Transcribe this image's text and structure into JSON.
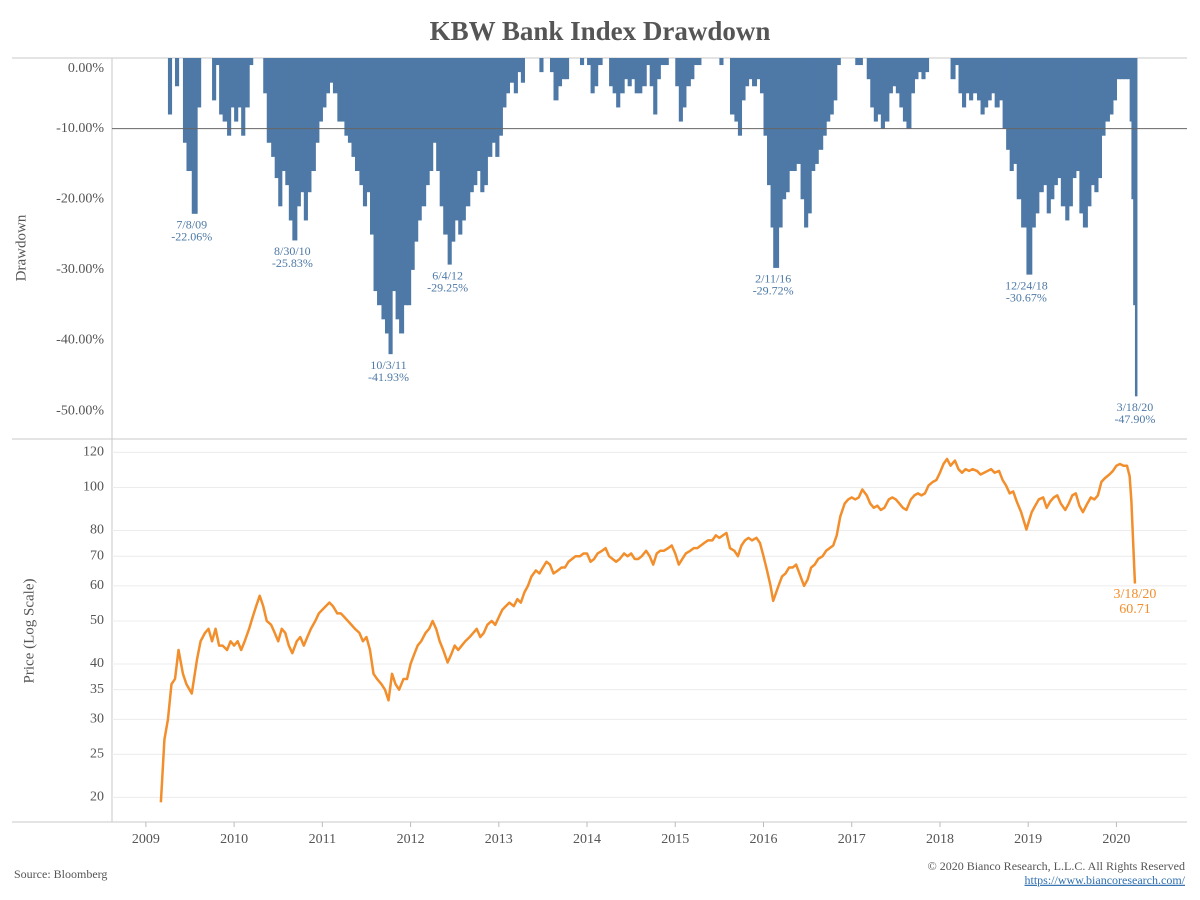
{
  "title": "KBW Bank Index Drawdown",
  "source": "Source: Bloomberg",
  "copyright": "© 2020 Bianco Research, L.L.C. All Rights Reserved",
  "url": "https://www.biancoresearch.com/",
  "chart_data": [
    {
      "type": "bar",
      "ylabel": "Drawdown",
      "color": "#4e79a7",
      "x": [
        2009.17,
        2009.21,
        2009.25,
        2009.29,
        2009.33,
        2009.37,
        2009.42,
        2009.46,
        2009.52,
        2009.58,
        2009.62,
        2009.67,
        2009.71,
        2009.75,
        2009.79,
        2009.83,
        2009.87,
        2009.92,
        2009.96,
        2010.0,
        2010.04,
        2010.08,
        2010.12,
        2010.17,
        2010.21,
        2010.25,
        2010.29,
        2010.33,
        2010.37,
        2010.42,
        2010.46,
        2010.5,
        2010.54,
        2010.58,
        2010.62,
        2010.66,
        2010.71,
        2010.75,
        2010.79,
        2010.83,
        2010.87,
        2010.92,
        2010.96,
        2011.0,
        2011.04,
        2011.08,
        2011.12,
        2011.17,
        2011.21,
        2011.25,
        2011.29,
        2011.33,
        2011.37,
        2011.42,
        2011.46,
        2011.5,
        2011.54,
        2011.58,
        2011.62,
        2011.67,
        2011.71,
        2011.75,
        2011.79,
        2011.83,
        2011.87,
        2011.92,
        2011.96,
        2012.0,
        2012.04,
        2012.08,
        2012.12,
        2012.17,
        2012.21,
        2012.25,
        2012.29,
        2012.33,
        2012.37,
        2012.42,
        2012.46,
        2012.5,
        2012.54,
        2012.58,
        2012.62,
        2012.67,
        2012.71,
        2012.75,
        2012.79,
        2012.83,
        2012.87,
        2012.92,
        2012.96,
        2013.0,
        2013.04,
        2013.08,
        2013.12,
        2013.17,
        2013.21,
        2013.25,
        2013.29,
        2013.33,
        2013.37,
        2013.42,
        2013.46,
        2013.5,
        2013.54,
        2013.58,
        2013.62,
        2013.67,
        2013.71,
        2013.75,
        2013.79,
        2013.83,
        2013.87,
        2013.92,
        2013.96,
        2014.0,
        2014.04,
        2014.08,
        2014.12,
        2014.17,
        2014.21,
        2014.25,
        2014.29,
        2014.33,
        2014.37,
        2014.42,
        2014.46,
        2014.5,
        2014.54,
        2014.58,
        2014.62,
        2014.67,
        2014.71,
        2014.75,
        2014.79,
        2014.83,
        2014.87,
        2014.92,
        2014.96,
        2015.0,
        2015.04,
        2015.08,
        2015.12,
        2015.17,
        2015.21,
        2015.25,
        2015.29,
        2015.33,
        2015.37,
        2015.42,
        2015.46,
        2015.5,
        2015.54,
        2015.58,
        2015.62,
        2015.67,
        2015.71,
        2015.75,
        2015.79,
        2015.83,
        2015.87,
        2015.92,
        2015.96,
        2016.0,
        2016.04,
        2016.08,
        2016.11,
        2016.17,
        2016.21,
        2016.25,
        2016.29,
        2016.33,
        2016.37,
        2016.42,
        2016.46,
        2016.5,
        2016.54,
        2016.58,
        2016.62,
        2016.67,
        2016.71,
        2016.75,
        2016.79,
        2016.83,
        2016.87,
        2016.92,
        2016.96,
        2017.0,
        2017.04,
        2017.08,
        2017.12,
        2017.17,
        2017.21,
        2017.25,
        2017.29,
        2017.33,
        2017.37,
        2017.42,
        2017.46,
        2017.5,
        2017.54,
        2017.58,
        2017.62,
        2017.67,
        2017.71,
        2017.75,
        2017.79,
        2017.83,
        2017.87,
        2017.92,
        2017.96,
        2018.0,
        2018.04,
        2018.08,
        2018.12,
        2018.17,
        2018.21,
        2018.25,
        2018.29,
        2018.33,
        2018.37,
        2018.42,
        2018.46,
        2018.5,
        2018.54,
        2018.58,
        2018.62,
        2018.67,
        2018.71,
        2018.75,
        2018.79,
        2018.83,
        2018.87,
        2018.92,
        2018.98,
        2019.04,
        2019.08,
        2019.12,
        2019.17,
        2019.21,
        2019.25,
        2019.29,
        2019.33,
        2019.37,
        2019.42,
        2019.46,
        2019.5,
        2019.54,
        2019.58,
        2019.62,
        2019.67,
        2019.71,
        2019.75,
        2019.79,
        2019.83,
        2019.87,
        2019.92,
        2019.96,
        2020.0,
        2020.04,
        2020.08,
        2020.12,
        2020.15,
        2020.17,
        2020.19,
        2020.21
      ],
      "values": [
        0,
        0,
        -8,
        0,
        -4,
        0,
        -12,
        -16,
        -22.06,
        -7,
        0,
        0,
        0,
        -6,
        -1,
        -8,
        -9,
        -11,
        -7,
        -9,
        -7,
        -11,
        -7,
        -1,
        0,
        0,
        0,
        -5,
        -12,
        -14,
        -17,
        -21,
        -16,
        -18,
        -23,
        -25.83,
        -21,
        -19,
        -23,
        -19,
        -16,
        -12,
        -9,
        -7,
        -5,
        -3.5,
        -5,
        -9,
        -9,
        -11,
        -12,
        -14,
        -16,
        -18,
        -21,
        -19,
        -25,
        -33,
        -35,
        -37,
        -39,
        -41.93,
        -33,
        -37,
        -39,
        -35,
        -35,
        -30,
        -26,
        -23,
        -21,
        -18,
        -16,
        -12,
        -16,
        -21,
        -25,
        -29.25,
        -26,
        -23,
        -25,
        -23,
        -21,
        -19,
        -18,
        -16,
        -19,
        -18,
        -14,
        -12,
        -14,
        -11,
        -7,
        -5,
        -3.5,
        -5,
        -2,
        -3.5,
        0,
        0,
        0,
        0,
        -2,
        0,
        0,
        -2,
        -6,
        -4,
        -3,
        -3,
        0,
        0,
        0,
        -1,
        0,
        -1,
        -5,
        -4,
        -1,
        0,
        0,
        -4,
        -5,
        -7,
        -5,
        -3,
        -4,
        -3,
        -5,
        -5,
        -4,
        -1,
        -4,
        -8,
        -3,
        -1,
        -1,
        0,
        0,
        -4,
        -9,
        -7,
        -4,
        -3,
        -1,
        -1,
        0,
        0,
        0,
        0,
        0,
        -1,
        0,
        0,
        -8,
        -9,
        -11,
        -6,
        -4,
        -3,
        -4,
        -3,
        -5,
        -11,
        -18,
        -24,
        -29.72,
        -24,
        -20,
        -19,
        -16,
        -16,
        -15,
        -20,
        -24,
        -22,
        -16,
        -15,
        -13,
        -11,
        -9,
        -8,
        -6,
        -1,
        0,
        0,
        0,
        0,
        -1,
        -1,
        0,
        -3,
        -7,
        -9,
        -8,
        -10,
        -9,
        -5,
        -4,
        -5,
        -7,
        -9,
        -10,
        -5,
        -3,
        -2,
        -3,
        -2,
        0,
        0,
        0,
        0,
        0,
        0,
        -3,
        -1,
        -5,
        -7,
        -5,
        -6,
        -5,
        -6,
        -8,
        -7,
        -6,
        -5,
        -7,
        -6,
        -10,
        -13,
        -16,
        -15,
        -20,
        -24,
        -30.67,
        -24,
        -22,
        -19,
        -18,
        -22,
        -20,
        -18,
        -17,
        -21,
        -23,
        -21,
        -17,
        -16,
        -22,
        -24,
        -21,
        -18,
        -19,
        -17,
        -11,
        -9,
        -8,
        -6,
        -3,
        -3,
        -3,
        -3,
        -9,
        -20,
        -35,
        -47.9
      ],
      "xlim": [
        2008.616,
        2020.8
      ],
      "ylim": [
        -53.8,
        0
      ],
      "yticks": [
        {
          "value": 0,
          "label": "0.00%"
        },
        {
          "value": -10,
          "label": "-10.00%"
        },
        {
          "value": -20,
          "label": "-20.00%"
        },
        {
          "value": -30,
          "label": "-30.00%"
        },
        {
          "value": -40,
          "label": "-40.00%"
        },
        {
          "value": -50,
          "label": "-50.00%"
        }
      ],
      "reference_lines": [
        -10
      ],
      "annotations": [
        {
          "x": 2009.52,
          "label": "7/8/09",
          "value": -22.06,
          "value_label": "-22.06%"
        },
        {
          "x": 2010.66,
          "label": "8/30/10",
          "value": -25.83,
          "value_label": "-25.83%"
        },
        {
          "x": 2011.75,
          "label": "10/3/11",
          "value": -41.93,
          "value_label": "-41.93%"
        },
        {
          "x": 2012.42,
          "label": "6/4/12",
          "value": -29.25,
          "value_label": "-29.25%"
        },
        {
          "x": 2016.11,
          "label": "2/11/16",
          "value": -29.72,
          "value_label": "-29.72%"
        },
        {
          "x": 2018.98,
          "label": "12/24/18",
          "value": -30.67,
          "value_label": "-30.67%"
        },
        {
          "x": 2020.21,
          "label": "3/18/20",
          "value": -47.9,
          "value_label": "-47.90%"
        }
      ]
    },
    {
      "type": "line",
      "ylabel": "Price (Log Scale)",
      "color": "#f28e2b",
      "log_scale": true,
      "grid": true,
      "x": [
        2009.17,
        2009.21,
        2009.25,
        2009.29,
        2009.33,
        2009.37,
        2009.42,
        2009.46,
        2009.52,
        2009.58,
        2009.62,
        2009.67,
        2009.71,
        2009.75,
        2009.79,
        2009.83,
        2009.87,
        2009.92,
        2009.96,
        2010.0,
        2010.04,
        2010.08,
        2010.12,
        2010.17,
        2010.21,
        2010.25,
        2010.29,
        2010.33,
        2010.37,
        2010.42,
        2010.46,
        2010.5,
        2010.54,
        2010.58,
        2010.62,
        2010.66,
        2010.71,
        2010.75,
        2010.79,
        2010.83,
        2010.87,
        2010.92,
        2010.96,
        2011.0,
        2011.04,
        2011.08,
        2011.12,
        2011.17,
        2011.21,
        2011.25,
        2011.29,
        2011.33,
        2011.37,
        2011.42,
        2011.46,
        2011.5,
        2011.54,
        2011.58,
        2011.62,
        2011.67,
        2011.71,
        2011.75,
        2011.79,
        2011.83,
        2011.87,
        2011.92,
        2011.96,
        2012.0,
        2012.04,
        2012.08,
        2012.12,
        2012.17,
        2012.21,
        2012.25,
        2012.29,
        2012.33,
        2012.37,
        2012.42,
        2012.46,
        2012.5,
        2012.54,
        2012.58,
        2012.62,
        2012.67,
        2012.71,
        2012.75,
        2012.79,
        2012.83,
        2012.87,
        2012.92,
        2012.96,
        2013.0,
        2013.04,
        2013.08,
        2013.12,
        2013.17,
        2013.21,
        2013.25,
        2013.29,
        2013.33,
        2013.37,
        2013.42,
        2013.46,
        2013.5,
        2013.54,
        2013.58,
        2013.62,
        2013.67,
        2013.71,
        2013.75,
        2013.79,
        2013.83,
        2013.87,
        2013.92,
        2013.96,
        2014.0,
        2014.04,
        2014.08,
        2014.12,
        2014.17,
        2014.21,
        2014.25,
        2014.29,
        2014.33,
        2014.37,
        2014.42,
        2014.46,
        2014.5,
        2014.54,
        2014.58,
        2014.62,
        2014.67,
        2014.71,
        2014.75,
        2014.79,
        2014.83,
        2014.87,
        2014.92,
        2014.96,
        2015.0,
        2015.04,
        2015.08,
        2015.12,
        2015.17,
        2015.21,
        2015.25,
        2015.29,
        2015.33,
        2015.37,
        2015.42,
        2015.46,
        2015.5,
        2015.54,
        2015.58,
        2015.62,
        2015.67,
        2015.71,
        2015.75,
        2015.79,
        2015.83,
        2015.87,
        2015.92,
        2015.96,
        2016.0,
        2016.04,
        2016.08,
        2016.11,
        2016.17,
        2016.21,
        2016.25,
        2016.29,
        2016.33,
        2016.37,
        2016.42,
        2016.46,
        2016.5,
        2016.54,
        2016.58,
        2016.62,
        2016.67,
        2016.71,
        2016.75,
        2016.79,
        2016.83,
        2016.87,
        2016.92,
        2016.96,
        2017.0,
        2017.04,
        2017.08,
        2017.12,
        2017.17,
        2017.21,
        2017.25,
        2017.29,
        2017.33,
        2017.37,
        2017.42,
        2017.46,
        2017.5,
        2017.54,
        2017.58,
        2017.62,
        2017.67,
        2017.71,
        2017.75,
        2017.79,
        2017.83,
        2017.87,
        2017.92,
        2017.96,
        2018.0,
        2018.04,
        2018.08,
        2018.12,
        2018.17,
        2018.21,
        2018.25,
        2018.29,
        2018.33,
        2018.37,
        2018.42,
        2018.46,
        2018.5,
        2018.54,
        2018.58,
        2018.62,
        2018.67,
        2018.71,
        2018.75,
        2018.79,
        2018.83,
        2018.87,
        2018.92,
        2018.98,
        2019.04,
        2019.08,
        2019.12,
        2019.17,
        2019.21,
        2019.25,
        2019.29,
        2019.33,
        2019.37,
        2019.42,
        2019.46,
        2019.5,
        2019.54,
        2019.58,
        2019.62,
        2019.67,
        2019.71,
        2019.75,
        2019.79,
        2019.83,
        2019.87,
        2019.92,
        2019.96,
        2020.0,
        2020.04,
        2020.08,
        2020.12,
        2020.15,
        2020.17,
        2020.19,
        2020.21
      ],
      "values": [
        19.5,
        27,
        30,
        36,
        37,
        43,
        38,
        36,
        34.3,
        41,
        45,
        47,
        48,
        45,
        48,
        44,
        44,
        43,
        45,
        44,
        45,
        43,
        45,
        48,
        51,
        54,
        57,
        54,
        50,
        49,
        47,
        45,
        48,
        47,
        44,
        42.3,
        45,
        46,
        44,
        46,
        48,
        50,
        52,
        53,
        54,
        55,
        54,
        52,
        52,
        51,
        50,
        49,
        48,
        47,
        45,
        46,
        43,
        38,
        37,
        36,
        35,
        33.1,
        38,
        36,
        35,
        37,
        37,
        40,
        42,
        44,
        45,
        47,
        48,
        50,
        48,
        45,
        43,
        40.3,
        42,
        44,
        43,
        44,
        45,
        46,
        47,
        48,
        46,
        47,
        49,
        50,
        49,
        51,
        53,
        54,
        55,
        54,
        56,
        55,
        58,
        60,
        63,
        65,
        64,
        66,
        68,
        67,
        64,
        65,
        66,
        66,
        68,
        69,
        70,
        70,
        71,
        71,
        68,
        69,
        71,
        72,
        73,
        70,
        69,
        68,
        69,
        71,
        70,
        71,
        69,
        69,
        70,
        72,
        70,
        67,
        71,
        72,
        72,
        73,
        74,
        71,
        67,
        69,
        71,
        72,
        73,
        73,
        74,
        75,
        76,
        76,
        78,
        77,
        78,
        79,
        73,
        72,
        70,
        74,
        76,
        77,
        76,
        77,
        75,
        70,
        65,
        60,
        55.5,
        60,
        63,
        64,
        66,
        66,
        67,
        63,
        60,
        62,
        66,
        67,
        69,
        70,
        72,
        73,
        74,
        78,
        86,
        92,
        94,
        95,
        94,
        95,
        99,
        96,
        92,
        90,
        91,
        89,
        90,
        94,
        95,
        94,
        92,
        90,
        89,
        94,
        96,
        97,
        96,
        97,
        101,
        103,
        104,
        108,
        113,
        116,
        112,
        115,
        110,
        108,
        110,
        109,
        110,
        109,
        107,
        108,
        109,
        110,
        108,
        109,
        104,
        101,
        97,
        98,
        93,
        88,
        80.4,
        88,
        91,
        94,
        95,
        90,
        93,
        95,
        96,
        92,
        89,
        92,
        96,
        97,
        91,
        88,
        92,
        95,
        94,
        96,
        103,
        105,
        107,
        109,
        112,
        113,
        112,
        112,
        106,
        93,
        75,
        60.71
      ],
      "xlim": [
        2008.616,
        2020.8
      ],
      "ylim": [
        17.6,
        128
      ],
      "xticks": [
        2009,
        2010,
        2011,
        2012,
        2013,
        2014,
        2015,
        2016,
        2017,
        2018,
        2019,
        2020
      ],
      "yticks": [
        20,
        25,
        30,
        35,
        40,
        50,
        60,
        70,
        80,
        100,
        120
      ],
      "annotations": [
        {
          "x": 2020.21,
          "label": "3/18/20",
          "value": 60.71
        }
      ]
    }
  ]
}
